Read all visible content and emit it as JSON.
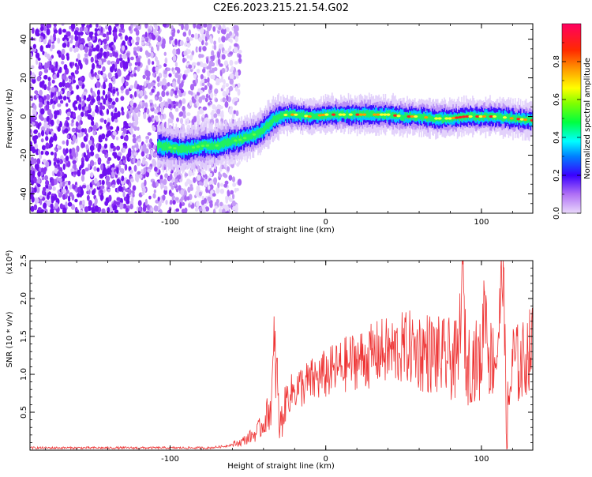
{
  "figure": {
    "title": "C2E6.2023.215.21.54.G02"
  },
  "chart_data": [
    {
      "type": "heatmap",
      "xlabel": "Height of straight line (km)",
      "ylabel": "Frequency (Hz)",
      "xlim": [
        -190,
        133
      ],
      "ylim": [
        -50,
        48
      ],
      "x_tick_labels": [
        "-100",
        "0",
        "100"
      ],
      "y_tick_labels": [
        "40",
        "20",
        "0",
        "-20",
        "-40"
      ],
      "colorbar": {
        "label": "Normalized spectral amplitude",
        "range": [
          0,
          1
        ],
        "tick_labels": [
          "0.0",
          "0.2",
          "0.4",
          "0.6",
          "0.8"
        ],
        "colormap": "rainbow"
      },
      "ridge": {
        "x": [
          -108,
          -100,
          -92,
          -85,
          -78,
          -70,
          -62,
          -55,
          -48,
          -42,
          -38,
          -34,
          -30,
          -25,
          -20,
          -10,
          0,
          10,
          20,
          30,
          40,
          50,
          60,
          70,
          80,
          90,
          100,
          110,
          120,
          133
        ],
        "y": [
          -15,
          -16,
          -17,
          -16,
          -15,
          -15,
          -13,
          -12,
          -10,
          -8,
          -5,
          -2,
          0,
          1,
          1,
          0,
          1,
          1,
          1,
          1,
          1,
          0,
          0,
          -1,
          -1,
          0,
          0,
          0,
          -1,
          -2
        ]
      }
    },
    {
      "type": "line",
      "xlabel": "Height of straight line (km)",
      "ylabel": "SNR (10 * v/v)",
      "y_multiplier_label": "(x10",
      "y_multiplier_exp": "4",
      "xlim": [
        -190,
        133
      ],
      "ylim": [
        0,
        2.5
      ],
      "x_tick_labels": [
        "-100",
        "0",
        "100"
      ],
      "y_tick_labels": [
        "0.5",
        "1.0",
        "1.5",
        "2.0",
        "2.5"
      ],
      "color": "#ee3333",
      "series": [
        {
          "x": [
            -190,
            -170,
            -150,
            -130,
            -110,
            -90,
            -75,
            -65,
            -55,
            -45,
            -40,
            -35,
            -33,
            -31,
            -30,
            -28,
            -25,
            -20,
            -15,
            -10,
            -5,
            0,
            5,
            10,
            15,
            20,
            25,
            30,
            35,
            40,
            45,
            50,
            55,
            60,
            65,
            70,
            75,
            80,
            85,
            88,
            90,
            95,
            100,
            102,
            105,
            110,
            114,
            116,
            120,
            125,
            130,
            133
          ],
          "y": [
            0.03,
            0.03,
            0.03,
            0.03,
            0.03,
            0.03,
            0.03,
            0.05,
            0.1,
            0.22,
            0.35,
            0.6,
            1.3,
            0.9,
            0.3,
            0.4,
            0.7,
            0.8,
            0.85,
            0.9,
            0.95,
            1.0,
            1.05,
            1.1,
            1.15,
            1.2,
            1.2,
            1.25,
            1.3,
            1.3,
            1.3,
            1.35,
            1.35,
            1.3,
            1.3,
            1.25,
            1.2,
            1.2,
            1.15,
            2.45,
            1.1,
            1.2,
            1.15,
            2.1,
            1.2,
            1.25,
            2.5,
            0.2,
            1.2,
            1.1,
            1.3,
            1.4
          ]
        }
      ]
    }
  ]
}
